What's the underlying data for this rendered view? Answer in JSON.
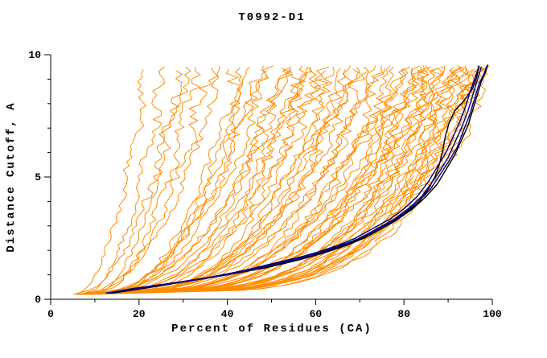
{
  "chart_data": {
    "type": "line",
    "title": "T0992-D1",
    "xlabel": "Percent of Residues (CA)",
    "ylabel": "Distance Cutoff, A",
    "xlim": [
      0,
      100
    ],
    "ylim": [
      0,
      10
    ],
    "xticks_major": [
      0,
      20,
      40,
      60,
      80,
      100
    ],
    "xticks_minor": [
      10,
      30,
      50,
      70,
      90
    ],
    "yticks_major": [
      0,
      5,
      10
    ],
    "yticks_minor": [
      1,
      2,
      3,
      4,
      6,
      7,
      8,
      9
    ],
    "grid": false,
    "legend": null,
    "colors": {
      "model": "#ff8c00",
      "navy": "#000080",
      "black": "#000000",
      "axis": "#000000",
      "background": "#ffffff"
    },
    "highlight_series": [
      {
        "name": "black-curve-1",
        "color": "#000000",
        "points": [
          [
            13,
            0.25
          ],
          [
            22,
            0.5
          ],
          [
            31,
            0.75
          ],
          [
            40,
            1.0
          ],
          [
            49,
            1.3
          ],
          [
            56,
            1.6
          ],
          [
            62,
            1.9
          ],
          [
            67,
            2.2
          ],
          [
            71,
            2.5
          ],
          [
            75,
            2.9
          ],
          [
            78,
            3.25
          ],
          [
            81,
            3.6
          ],
          [
            83.5,
            4.0
          ],
          [
            85.5,
            4.5
          ],
          [
            87,
            5.0
          ],
          [
            88,
            5.5
          ],
          [
            88.8,
            6.1
          ],
          [
            89.4,
            6.7
          ],
          [
            90.2,
            7.2
          ],
          [
            91.5,
            7.7
          ],
          [
            93.5,
            8.1
          ],
          [
            95.5,
            8.6
          ],
          [
            96.5,
            9.1
          ],
          [
            97,
            9.55
          ]
        ]
      },
      {
        "name": "black-curve-2",
        "color": "#000000",
        "points": [
          [
            14,
            0.25
          ],
          [
            23,
            0.5
          ],
          [
            33,
            0.8
          ],
          [
            43,
            1.1
          ],
          [
            52,
            1.45
          ],
          [
            59,
            1.75
          ],
          [
            65,
            2.1
          ],
          [
            70,
            2.45
          ],
          [
            74,
            2.8
          ],
          [
            78,
            3.2
          ],
          [
            82,
            3.7
          ],
          [
            85,
            4.2
          ],
          [
            87.5,
            4.7
          ],
          [
            89.5,
            5.3
          ],
          [
            91.5,
            5.9
          ],
          [
            93,
            6.5
          ],
          [
            94.5,
            7.1
          ],
          [
            95.5,
            7.7
          ],
          [
            96.5,
            8.3
          ],
          [
            97.5,
            8.9
          ],
          [
            98.5,
            9.3
          ],
          [
            99,
            9.6
          ]
        ]
      },
      {
        "name": "navy-curve-1",
        "color": "#000080",
        "points": [
          [
            13,
            0.25
          ],
          [
            20,
            0.45
          ],
          [
            28,
            0.65
          ],
          [
            35,
            0.85
          ],
          [
            40,
            1.0
          ],
          [
            48,
            1.3
          ],
          [
            55,
            1.6
          ],
          [
            61,
            1.9
          ],
          [
            66,
            2.2
          ],
          [
            70,
            2.5
          ],
          [
            74,
            2.9
          ],
          [
            78,
            3.3
          ],
          [
            81,
            3.7
          ],
          [
            84,
            4.2
          ],
          [
            86,
            4.7
          ],
          [
            88,
            5.2
          ],
          [
            90,
            5.8
          ],
          [
            91.5,
            6.4
          ],
          [
            93,
            7.0
          ],
          [
            94.5,
            7.7
          ],
          [
            95.5,
            8.3
          ],
          [
            96.5,
            8.9
          ],
          [
            97.5,
            9.5
          ]
        ]
      },
      {
        "name": "navy-curve-2",
        "color": "#000080",
        "points": [
          [
            13.5,
            0.25
          ],
          [
            21,
            0.5
          ],
          [
            29,
            0.7
          ],
          [
            36,
            0.9
          ],
          [
            42,
            1.1
          ],
          [
            50,
            1.45
          ],
          [
            57,
            1.75
          ],
          [
            63,
            2.05
          ],
          [
            68,
            2.35
          ],
          [
            72,
            2.65
          ],
          [
            76,
            3.05
          ],
          [
            80,
            3.5
          ],
          [
            83,
            3.95
          ],
          [
            86,
            4.5
          ],
          [
            88,
            5.05
          ],
          [
            90,
            5.6
          ],
          [
            92,
            6.2
          ],
          [
            93.5,
            6.9
          ],
          [
            95,
            7.6
          ],
          [
            96,
            8.2
          ],
          [
            97,
            8.8
          ],
          [
            98.3,
            9.3
          ],
          [
            98.8,
            9.55
          ]
        ]
      },
      {
        "name": "navy-curve-3",
        "color": "#000080",
        "points": [
          [
            12.5,
            0.25
          ],
          [
            19,
            0.45
          ],
          [
            26,
            0.6
          ],
          [
            33,
            0.8
          ],
          [
            39,
            1.0
          ],
          [
            47,
            1.3
          ],
          [
            54,
            1.6
          ],
          [
            60,
            1.9
          ],
          [
            65,
            2.2
          ],
          [
            69,
            2.5
          ],
          [
            73,
            2.9
          ],
          [
            77,
            3.3
          ],
          [
            80,
            3.7
          ],
          [
            83,
            4.2
          ],
          [
            85.5,
            4.8
          ],
          [
            87.5,
            5.4
          ],
          [
            89.5,
            6.0
          ],
          [
            91,
            6.6
          ],
          [
            92.5,
            7.2
          ],
          [
            94,
            7.9
          ],
          [
            95,
            8.5
          ],
          [
            96,
            9.0
          ],
          [
            97,
            9.55
          ]
        ]
      }
    ],
    "model_series": {
      "name": "server-models",
      "color": "#ff8c00",
      "curve_params_legend": [
        "x_start_percent",
        "x_top_percent",
        "shape_exponent",
        "y_start_cutoff",
        "y_top_cutoff",
        "jitter_amp",
        "seed"
      ],
      "curves": [
        [
          6,
          22,
          0.55,
          0.2,
          9.4,
          1.2,
          1
        ],
        [
          7.5,
          26,
          0.5,
          0.25,
          9.5,
          1.4,
          2
        ],
        [
          9,
          29,
          0.45,
          0.2,
          9.35,
          1.3,
          3
        ],
        [
          11,
          33,
          0.5,
          0.3,
          9.5,
          1.5,
          4
        ],
        [
          5.5,
          36,
          0.42,
          0.2,
          9.45,
          1.6,
          5
        ],
        [
          8,
          39,
          0.48,
          0.25,
          9.55,
          1.2,
          6
        ],
        [
          10,
          42,
          0.4,
          0.2,
          9.4,
          1.8,
          7
        ],
        [
          12,
          45,
          0.45,
          0.3,
          9.5,
          1.4,
          8
        ],
        [
          6.5,
          47,
          0.38,
          0.2,
          9.35,
          1.6,
          9
        ],
        [
          9.5,
          50,
          0.42,
          0.25,
          9.55,
          1.3,
          10
        ],
        [
          13,
          52,
          0.36,
          0.3,
          9.45,
          1.7,
          11
        ],
        [
          7,
          54,
          0.4,
          0.2,
          9.5,
          1.5,
          12
        ],
        [
          11.5,
          56,
          0.34,
          0.25,
          9.4,
          1.9,
          13
        ],
        [
          8.5,
          58,
          0.38,
          0.2,
          9.55,
          1.4,
          14
        ],
        [
          14,
          60,
          0.33,
          0.3,
          9.5,
          1.6,
          15
        ],
        [
          6,
          62,
          0.36,
          0.2,
          9.35,
          1.8,
          16
        ],
        [
          10.5,
          64,
          0.32,
          0.25,
          9.5,
          1.5,
          17
        ],
        [
          12.5,
          66,
          0.35,
          0.3,
          9.45,
          1.3,
          18
        ],
        [
          7.5,
          68,
          0.3,
          0.2,
          9.55,
          1.7,
          19
        ],
        [
          9,
          70,
          0.33,
          0.25,
          9.4,
          1.5,
          20
        ],
        [
          15,
          72,
          0.3,
          0.3,
          9.5,
          1.9,
          21
        ],
        [
          6.5,
          74,
          0.32,
          0.2,
          9.45,
          1.4,
          22
        ],
        [
          11,
          76,
          0.29,
          0.25,
          9.55,
          1.6,
          23
        ],
        [
          8,
          78,
          0.31,
          0.2,
          9.5,
          1.8,
          24
        ],
        [
          13.5,
          80,
          0.28,
          0.3,
          9.4,
          1.5,
          25
        ],
        [
          7,
          81,
          0.3,
          0.2,
          9.5,
          1.3,
          26
        ],
        [
          10,
          82,
          0.27,
          0.25,
          9.55,
          1.7,
          27
        ],
        [
          12,
          83,
          0.3,
          0.3,
          9.45,
          1.5,
          28
        ],
        [
          6,
          84,
          0.26,
          0.2,
          9.5,
          1.9,
          29
        ],
        [
          9.5,
          85,
          0.29,
          0.25,
          9.35,
          1.4,
          30
        ],
        [
          14.5,
          86,
          0.25,
          0.3,
          9.55,
          1.6,
          31
        ],
        [
          7.5,
          87,
          0.28,
          0.2,
          9.5,
          1.8,
          32
        ],
        [
          11.5,
          88,
          0.26,
          0.25,
          9.45,
          1.3,
          33
        ],
        [
          8.5,
          89,
          0.24,
          0.2,
          9.55,
          1.5,
          34
        ],
        [
          13,
          90,
          0.27,
          0.3,
          9.5,
          1.7,
          35
        ],
        [
          6.5,
          91,
          0.25,
          0.2,
          9.4,
          1.4,
          36
        ],
        [
          10.5,
          92,
          0.23,
          0.25,
          9.55,
          1.6,
          37
        ],
        [
          12.5,
          93,
          0.26,
          0.3,
          9.5,
          1.9,
          38
        ],
        [
          7,
          94,
          0.24,
          0.2,
          9.45,
          1.5,
          39
        ],
        [
          9,
          95,
          0.22,
          0.25,
          9.55,
          1.3,
          40
        ],
        [
          15.5,
          96,
          0.25,
          0.3,
          9.5,
          1.7,
          41
        ],
        [
          8,
          97,
          0.23,
          0.2,
          9.4,
          1.5,
          42
        ],
        [
          11,
          98,
          0.22,
          0.25,
          9.55,
          1.8,
          43
        ],
        [
          6,
          99,
          0.24,
          0.2,
          9.5,
          1.4,
          44
        ],
        [
          10,
          100,
          0.22,
          0.25,
          9.55,
          1.6,
          45
        ],
        [
          13.5,
          44,
          0.44,
          0.3,
          9.45,
          1.5,
          46
        ],
        [
          5.5,
          57,
          0.37,
          0.2,
          9.5,
          1.7,
          47
        ],
        [
          9.5,
          67,
          0.32,
          0.25,
          9.4,
          1.4,
          48
        ],
        [
          12,
          77,
          0.29,
          0.3,
          9.55,
          1.6,
          49
        ],
        [
          7.5,
          86,
          0.27,
          0.2,
          9.5,
          1.8,
          50
        ],
        [
          10.5,
          94,
          0.24,
          0.25,
          9.45,
          1.5,
          51
        ],
        [
          8.5,
          73,
          0.31,
          0.2,
          9.55,
          1.3,
          52
        ],
        [
          14,
          63,
          0.34,
          0.3,
          9.5,
          1.7,
          53
        ],
        [
          6.5,
          53,
          0.38,
          0.2,
          9.4,
          1.5,
          54
        ],
        [
          11.5,
          84,
          0.27,
          0.25,
          9.55,
          1.9,
          55
        ],
        [
          9,
          92,
          0.24,
          0.2,
          9.5,
          1.4,
          56
        ],
        [
          12.5,
          97,
          0.23,
          0.3,
          9.45,
          1.6,
          57
        ],
        [
          7,
          48,
          0.41,
          0.2,
          9.55,
          1.5,
          58
        ],
        [
          10,
          69,
          0.32,
          0.25,
          9.5,
          1.7,
          59
        ],
        [
          13,
          88,
          0.26,
          0.3,
          9.4,
          1.4,
          60
        ],
        [
          5.5,
          31,
          0.5,
          0.2,
          9.5,
          1.6,
          61
        ],
        [
          8,
          96,
          0.23,
          0.25,
          9.55,
          1.8,
          62
        ],
        [
          11,
          59,
          0.35,
          0.2,
          9.5,
          1.5,
          63
        ],
        [
          9.5,
          79,
          0.29,
          0.3,
          9.45,
          1.6,
          64
        ]
      ]
    }
  }
}
